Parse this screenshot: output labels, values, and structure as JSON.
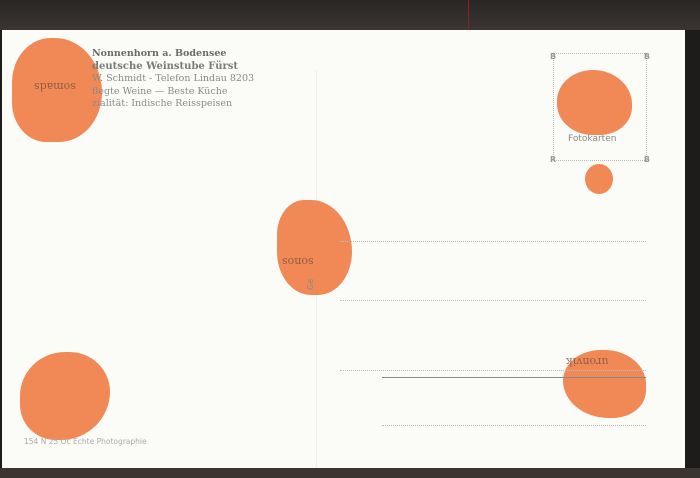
{
  "postcard": {
    "sender_lines": [
      "Nonnenhorn a. Bodensee",
      "deutsche Weinstube Fürst",
      "W. Schmidt  -  Telefon Lindau 8203",
      "flegte Weine  —  Beste Küche",
      "zialität: Indische Reisspeisen"
    ],
    "stamp_box": {
      "corners": [
        "B",
        "B",
        "R",
        "B"
      ],
      "brand": "Fotokarten"
    },
    "footer": "154 N 25 Oc  Echte Photographie",
    "vertical_text": "Ge",
    "colors": {
      "stain": "#f0804a",
      "paper": "#fbfbf8",
      "border": "#1e1c1a"
    }
  }
}
